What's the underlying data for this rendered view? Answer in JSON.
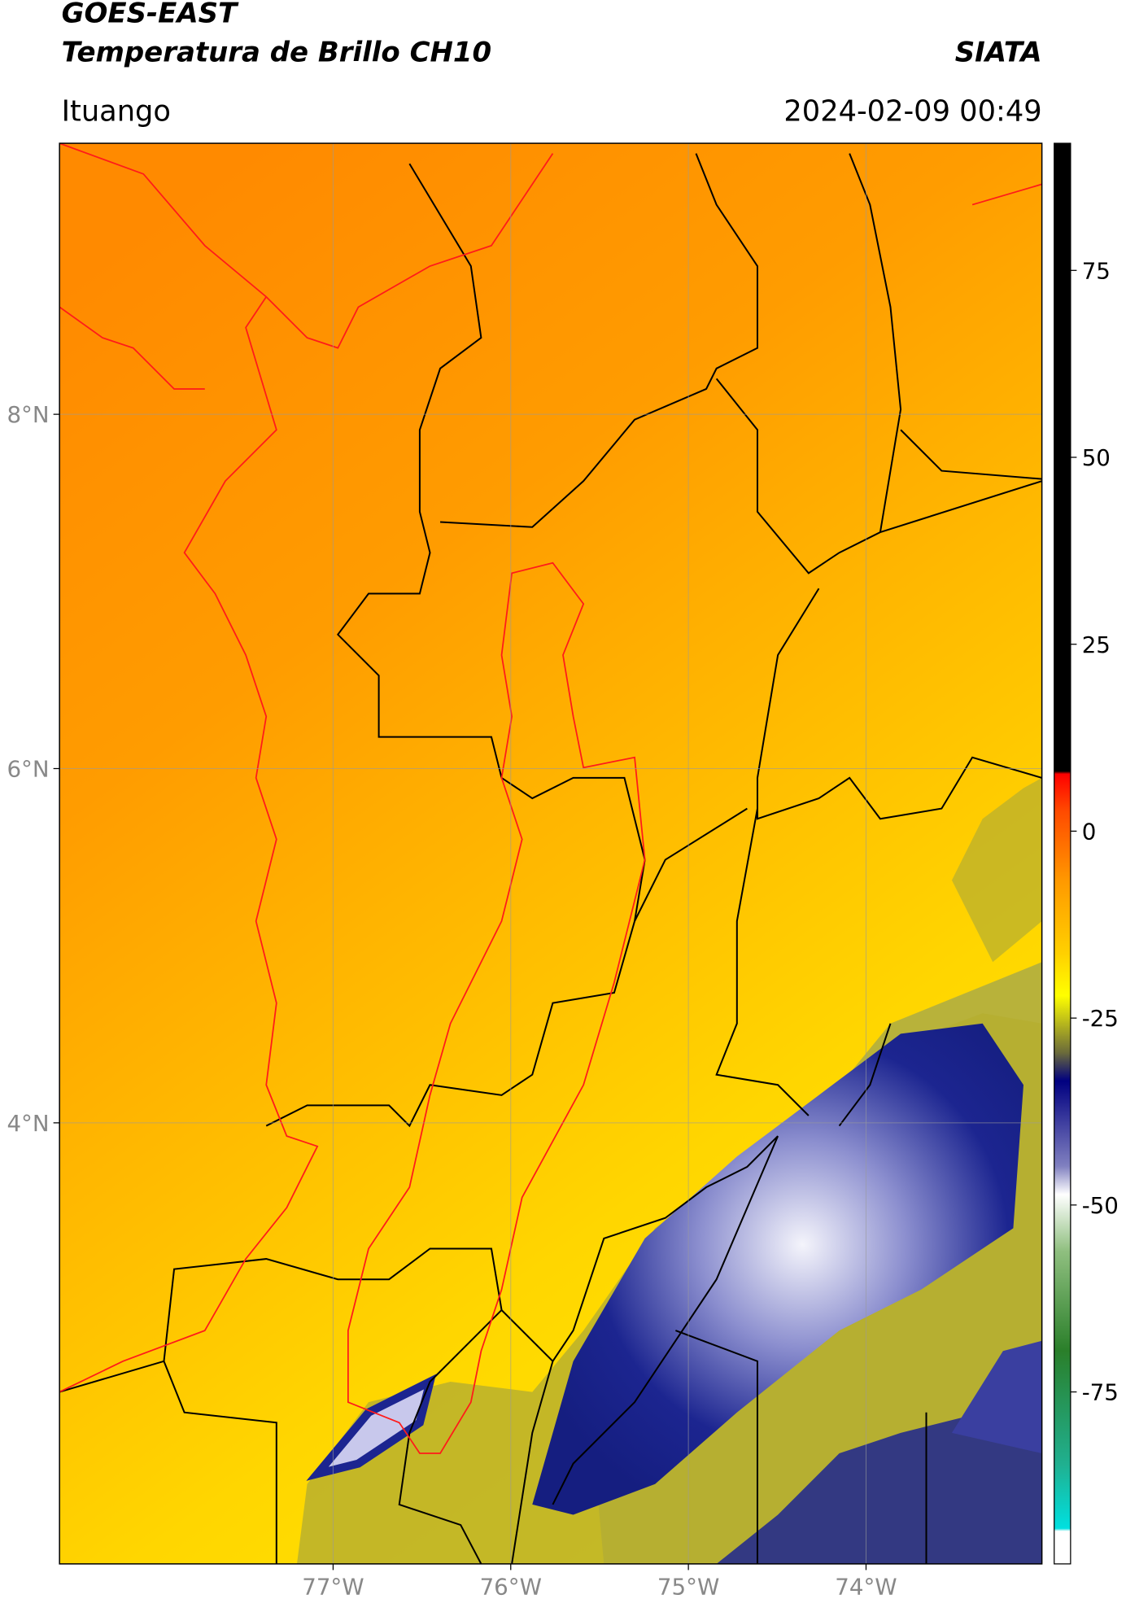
{
  "header": {
    "title": "GOES-EAST",
    "subtitle": "Temperatura de Brillo CH10",
    "source": "SIATA",
    "location": "Ituango",
    "datetime": "2024-02-09 00:49"
  },
  "map": {
    "type": "map",
    "xlim": [
      -78.54,
      -73.01
    ],
    "ylim": [
      1.51,
      9.53
    ],
    "xticks": [
      {
        "value": -77,
        "label": "77°W"
      },
      {
        "value": -76,
        "label": "76°W"
      },
      {
        "value": -75,
        "label": "75°W"
      },
      {
        "value": -74,
        "label": "74°W"
      }
    ],
    "yticks": [
      {
        "value": 8,
        "label": "8°N"
      },
      {
        "value": 6,
        "label": "6°N"
      },
      {
        "value": 4,
        "label": "4°N"
      }
    ],
    "grid": true
  },
  "colorbar": {
    "clim": [
      -98,
      92
    ],
    "ticks": [
      75,
      50,
      25,
      0,
      -25,
      -50,
      -75
    ]
  }
}
